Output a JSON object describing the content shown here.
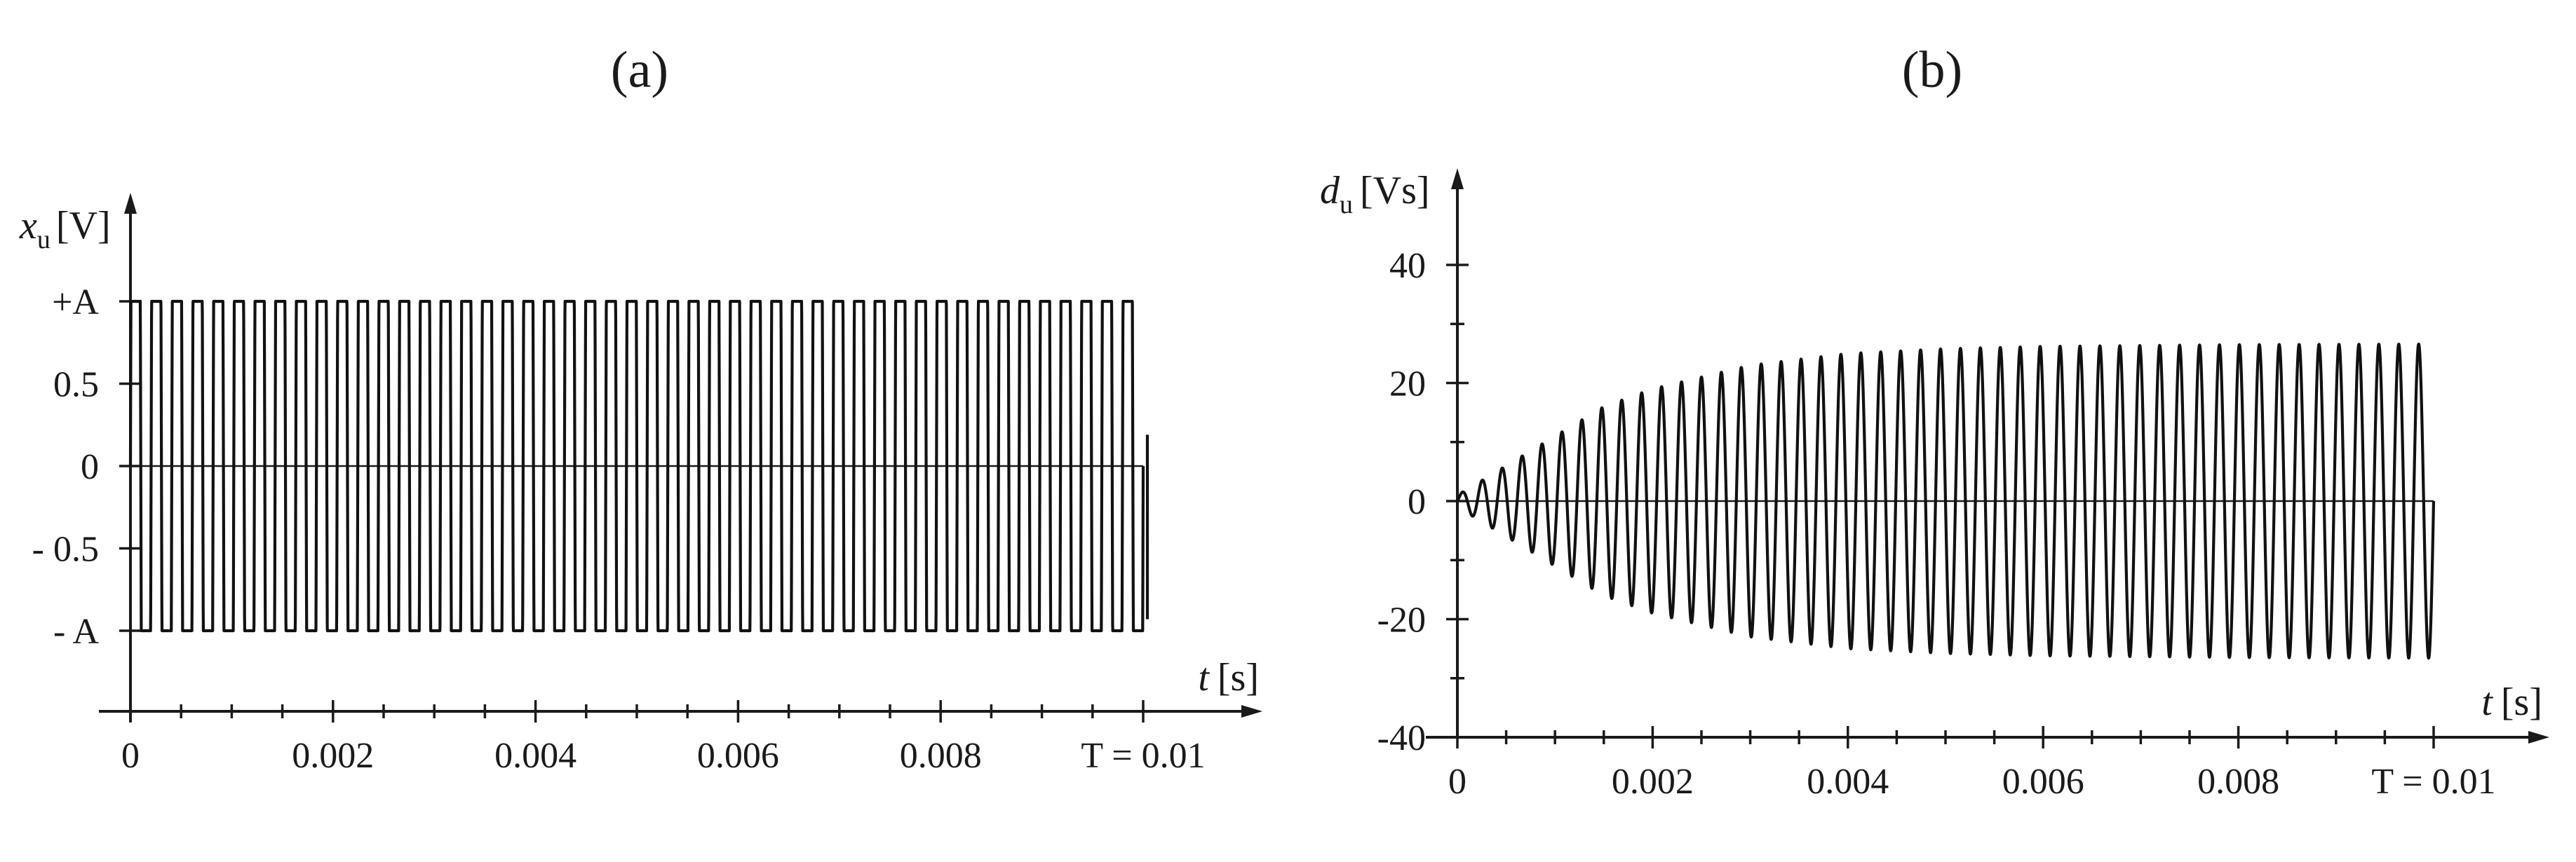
{
  "chart_data": [
    {
      "type": "line",
      "panel_label": "(a)",
      "x_axis": {
        "label_var": "t",
        "label_unit": "[s]",
        "range": [
          0,
          0.01
        ],
        "ticks": [
          {
            "value": 0,
            "label": "0"
          },
          {
            "value": 0.002,
            "label": "0.002"
          },
          {
            "value": 0.004,
            "label": "0.004"
          },
          {
            "value": 0.006,
            "label": "0.006"
          },
          {
            "value": 0.008,
            "label": "0.008"
          },
          {
            "value": 0.01,
            "label": "T = 0.01"
          }
        ]
      },
      "y_axis": {
        "label_var": "x",
        "label_sub": "u",
        "label_unit": "[V]",
        "range": [
          -1,
          1
        ],
        "ticks": [
          {
            "value": 1,
            "label": "+A"
          },
          {
            "value": 0.5,
            "label": "0.5"
          },
          {
            "value": 0,
            "label": "0"
          },
          {
            "value": -0.5,
            "label": "- 0.5"
          },
          {
            "value": -1,
            "label": "- A"
          }
        ]
      },
      "series": [
        {
          "waveform": "square",
          "amplitude": 1,
          "frequency_hz": 4900,
          "x_start": 0,
          "x_end": 0.01,
          "end_value": 0.19
        }
      ]
    },
    {
      "type": "line",
      "panel_label": "(b)",
      "x_axis": {
        "label_var": "t",
        "label_unit": "[s]",
        "range": [
          0,
          0.01
        ],
        "ticks": [
          {
            "value": 0,
            "label": "0"
          },
          {
            "value": 0.002,
            "label": "0.002"
          },
          {
            "value": 0.004,
            "label": "0.004"
          },
          {
            "value": 0.006,
            "label": "0.006"
          },
          {
            "value": 0.008,
            "label": "0.008"
          },
          {
            "value": 0.01,
            "label": "T = 0.01"
          }
        ]
      },
      "y_axis": {
        "label_var": "d",
        "label_sub": "u",
        "label_unit": "[Vs]",
        "range": [
          -40,
          40
        ],
        "ticks": [
          {
            "value": 40,
            "label": "40"
          },
          {
            "value": 20,
            "label": "20"
          },
          {
            "value": 0,
            "label": "0"
          },
          {
            "value": -20,
            "label": "-20"
          },
          {
            "value": -40,
            "label": "-40"
          }
        ]
      },
      "series": [
        {
          "waveform": "oscillation with growing envelope",
          "frequency_hz": 4900,
          "x_start": 0,
          "x_end": 0.01,
          "envelope": {
            "t": [
              0,
              0.0002,
              0.0005,
              0.001,
              0.0015,
              0.002,
              0.003,
              0.004,
              0.005,
              0.006,
              0.008,
              0.01
            ],
            "amplitude": [
              1,
              3,
              6,
              11,
              16,
              19,
              23,
              25,
              25.8,
              26.2,
              26.5,
              26.6
            ]
          }
        }
      ]
    }
  ]
}
